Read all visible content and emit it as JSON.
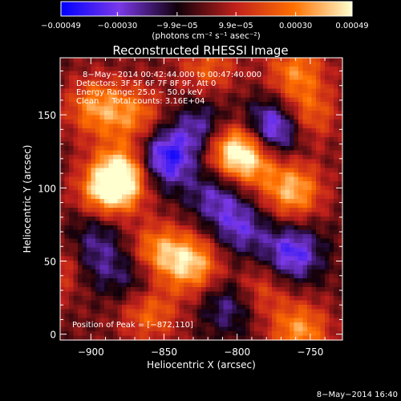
{
  "chart_data": {
    "type": "heatmap",
    "title": "Reconstructed RHESSI Image",
    "xlabel": "Heliocentric X (arcsec)",
    "ylabel": "Heliocentric Y (arcsec)",
    "xlim": [
      -921,
      -728
    ],
    "ylim": [
      -4,
      189
    ],
    "x_ticks": [
      -900,
      -850,
      -800,
      -750
    ],
    "x_tick_labels": [
      "−900",
      "−850",
      "−800",
      "−750"
    ],
    "y_ticks": [
      0,
      50,
      100,
      150
    ],
    "y_tick_labels": [
      "0",
      "50",
      "100",
      "150"
    ],
    "colorbar": {
      "ticks": [
        -0.00049,
        -0.0003,
        -9.9e-05,
        9.9e-05,
        0.0003,
        0.00049
      ],
      "tick_labels": [
        "−0.00049",
        "−0.00030",
        "−9.9e−05",
        "9.9e−05",
        "0.00030",
        "0.00049"
      ],
      "unit_label": "(photons cm⁻² s⁻¹ asec⁻²)",
      "colors": [
        "#0000ff",
        "#7a38e8",
        "#10000a",
        "#c0201c",
        "#ff7000",
        "#ffffd0"
      ]
    },
    "annotations": {
      "time_range": "8−May−2014 00:42:44.000 to 00:47:40.000",
      "detectors": "Detectors: 3F 5F 6F 7F 8F 9F, Att 0",
      "energy": "Energy Range: 25.0 − 50.0 keV",
      "clean": "Clean     Total counts: 3.16E+04",
      "peak": "Position of Peak = [−872,110]"
    },
    "peak_position": [
      -872,
      110
    ],
    "bright_regions": [
      {
        "x": -878,
        "y": 110,
        "level": 1.0
      },
      {
        "x": -890,
        "y": 95,
        "level": 0.85
      },
      {
        "x": -897,
        "y": 155,
        "level": 0.65
      },
      {
        "x": -870,
        "y": 150,
        "level": 0.55
      },
      {
        "x": -805,
        "y": 127,
        "level": 0.85
      },
      {
        "x": -790,
        "y": 120,
        "level": 0.7
      },
      {
        "x": -762,
        "y": 98,
        "level": 0.8
      },
      {
        "x": -752,
        "y": 150,
        "level": 0.55
      },
      {
        "x": -830,
        "y": 48,
        "level": 0.8
      },
      {
        "x": -855,
        "y": 55,
        "level": 0.75
      },
      {
        "x": -757,
        "y": 2,
        "level": 0.7
      },
      {
        "x": -860,
        "y": 15,
        "level": 0.55
      },
      {
        "x": -915,
        "y": 45,
        "level": 0.5
      },
      {
        "x": -820,
        "y": 182,
        "level": 0.45
      },
      {
        "x": -760,
        "y": 180,
        "level": 0.6
      },
      {
        "x": -785,
        "y": 30,
        "level": 0.45
      }
    ],
    "dim_regions": [
      {
        "x": -850,
        "y": 120,
        "level": -0.9
      },
      {
        "x": -823,
        "y": 140,
        "level": -0.6
      },
      {
        "x": -775,
        "y": 140,
        "level": -0.95
      },
      {
        "x": -815,
        "y": 95,
        "level": -0.5
      },
      {
        "x": -798,
        "y": 72,
        "level": -0.55
      },
      {
        "x": -762,
        "y": 55,
        "level": -0.75
      },
      {
        "x": -900,
        "y": 48,
        "level": -0.5
      },
      {
        "x": -895,
        "y": 75,
        "level": -0.4
      },
      {
        "x": -868,
        "y": 40,
        "level": -0.45
      },
      {
        "x": -805,
        "y": 20,
        "level": -0.5
      }
    ]
  },
  "footer": {
    "timestamp": "8−May−2014 16:40"
  }
}
